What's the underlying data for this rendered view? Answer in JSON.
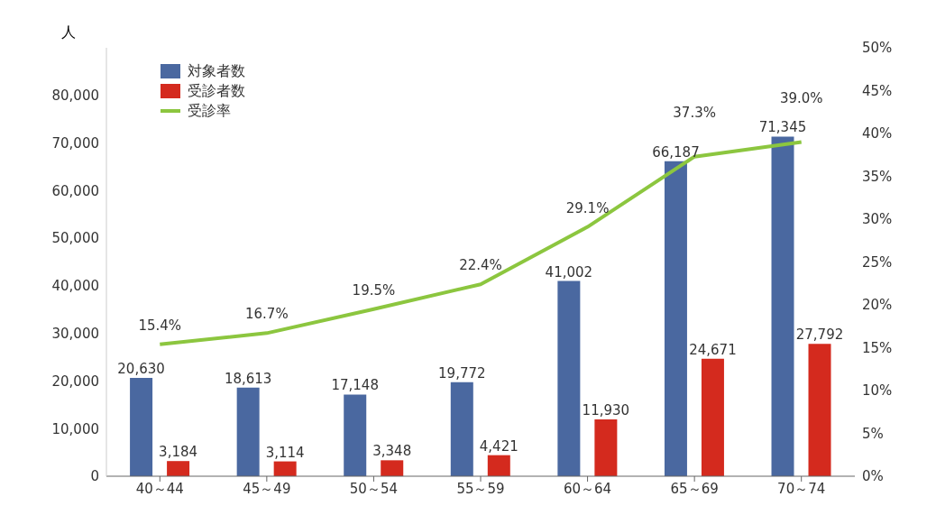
{
  "chart_data": {
    "type": "bar",
    "ylabel": "人",
    "categories": [
      "40～44",
      "45～49",
      "50～54",
      "55～59",
      "60～64",
      "65～69",
      "70～74"
    ],
    "series": [
      {
        "name": "対象者数",
        "color": "#4a68a0",
        "values": [
          20630,
          18613,
          17148,
          19772,
          41002,
          66187,
          71345
        ],
        "value_labels": [
          "20,630",
          "18,613",
          "17,148",
          "19,772",
          "41,002",
          "66,187",
          "71,345"
        ]
      },
      {
        "name": "受診者数",
        "color": "#d42a1e",
        "values": [
          3184,
          3114,
          3348,
          4421,
          11930,
          24671,
          27792
        ],
        "value_labels": [
          "3,184",
          "3,114",
          "3,348",
          "4,421",
          "11,930",
          "24,671",
          "27,792"
        ]
      },
      {
        "name": "受診率",
        "type": "line",
        "axis": "y2",
        "color": "#8cc63f",
        "values": [
          15.4,
          16.7,
          19.5,
          22.4,
          29.1,
          37.3,
          39.0
        ],
        "value_labels": [
          "15.4%",
          "16.7%",
          "19.5%",
          "22.4%",
          "29.1%",
          "37.3%",
          "39.0%"
        ]
      }
    ],
    "ylim": [
      0,
      90000
    ],
    "yticks": [
      {
        "value": 0,
        "label": "0"
      },
      {
        "value": 10000,
        "label": "10,000"
      },
      {
        "value": 20000,
        "label": "20,000"
      },
      {
        "value": 30000,
        "label": "30,000"
      },
      {
        "value": 40000,
        "label": "40,000"
      },
      {
        "value": 50000,
        "label": "50,000"
      },
      {
        "value": 60000,
        "label": "60,000"
      },
      {
        "value": 70000,
        "label": "70,000"
      },
      {
        "value": 80000,
        "label": "80,000"
      }
    ],
    "y2lim": [
      0,
      50
    ],
    "y2ticks": [
      {
        "value": 0,
        "label": "0%"
      },
      {
        "value": 5,
        "label": "5%"
      },
      {
        "value": 10,
        "label": "10%"
      },
      {
        "value": 15,
        "label": "15%"
      },
      {
        "value": 20,
        "label": "20%"
      },
      {
        "value": 25,
        "label": "25%"
      },
      {
        "value": 30,
        "label": "30%"
      },
      {
        "value": 35,
        "label": "35%"
      },
      {
        "value": 40,
        "label": "40%"
      },
      {
        "value": 45,
        "label": "45%"
      },
      {
        "value": 50,
        "label": "50%"
      }
    ],
    "grid": false,
    "legend": "top left",
    "marker": "none"
  }
}
